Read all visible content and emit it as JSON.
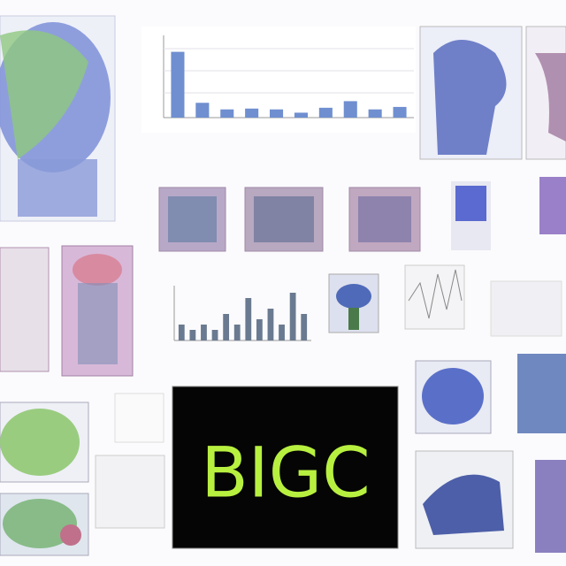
{
  "center_panel": {
    "text": "BIGC"
  },
  "chart_data": [
    {
      "type": "bar",
      "color": "#6f8fd0",
      "ylim": [
        0,
        10
      ],
      "values": [
        8,
        1.8,
        1,
        1.1,
        1,
        0.6,
        1.2,
        2,
        1,
        1.3
      ]
    },
    {
      "type": "bar",
      "color": "#6a7a90",
      "ylim": [
        0,
        1
      ],
      "values": [
        0.3,
        0.2,
        0.3,
        0.2,
        0.5,
        0.3,
        0.8,
        0.4,
        0.6,
        0.3,
        0.9,
        0.5
      ]
    }
  ]
}
